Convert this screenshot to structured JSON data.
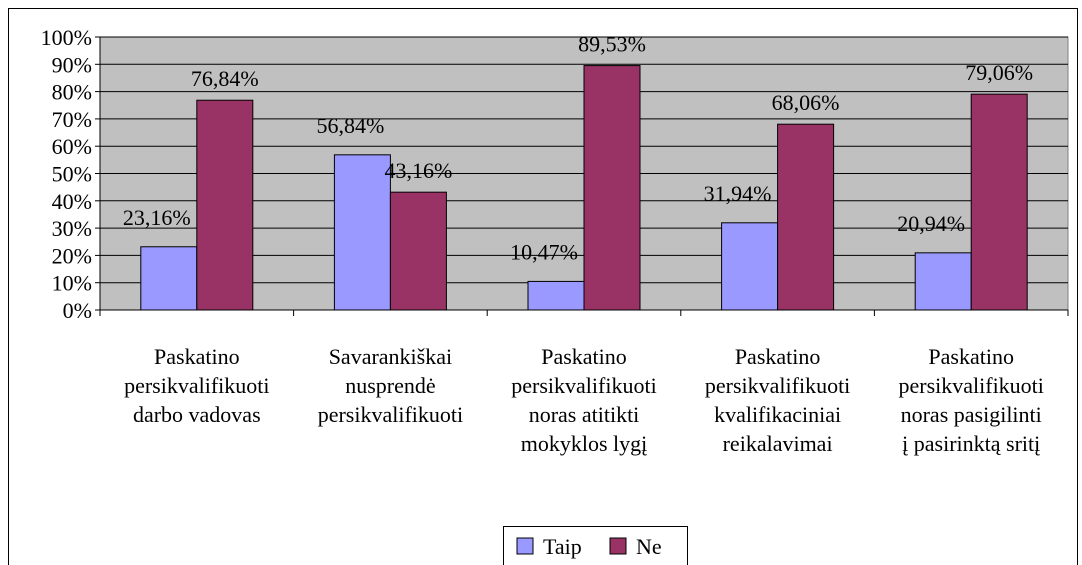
{
  "chart_data": {
    "type": "bar",
    "categories": [
      [
        "Paskatino",
        "persikvalifikuoti",
        "darbo vadovas"
      ],
      [
        "Savarankiškai",
        "nusprendė",
        "persikvalifikuoti"
      ],
      [
        "Paskatino",
        "persikvalifikuoti",
        "noras atitikti",
        "mokyklos lygį"
      ],
      [
        "Paskatino",
        "persikvalifikuoti",
        "kvalifikaciniai",
        "reikalavimai"
      ],
      [
        "Paskatino",
        "persikvalifikuoti",
        "noras pasigilinti",
        "į pasirinktą sritį"
      ]
    ],
    "series": [
      {
        "name": "Taip",
        "color": "#9999ff",
        "values": [
          23.16,
          56.84,
          10.47,
          31.94,
          20.94
        ],
        "value_labels": [
          "23,16%",
          "56,84%",
          "10,47%",
          "31,94%",
          "20,94%"
        ]
      },
      {
        "name": "Ne",
        "color": "#993366",
        "values": [
          76.84,
          43.16,
          89.53,
          68.06,
          79.06
        ],
        "value_labels": [
          "76,84%",
          "43,16%",
          "89,53%",
          "68,06%",
          "79,06%"
        ]
      }
    ],
    "ylim": [
      0,
      100
    ],
    "yticks": [
      {
        "value": 0,
        "label": "0%"
      },
      {
        "value": 10,
        "label": "10%"
      },
      {
        "value": 20,
        "label": "20%"
      },
      {
        "value": 30,
        "label": "30%"
      },
      {
        "value": 40,
        "label": "40%"
      },
      {
        "value": 50,
        "label": "50%"
      },
      {
        "value": 60,
        "label": "60%"
      },
      {
        "value": 70,
        "label": "70%"
      },
      {
        "value": 80,
        "label": "80%"
      },
      {
        "value": 90,
        "label": "90%"
      },
      {
        "value": 100,
        "label": "100%"
      }
    ],
    "grid": true,
    "legend": "bottom"
  }
}
